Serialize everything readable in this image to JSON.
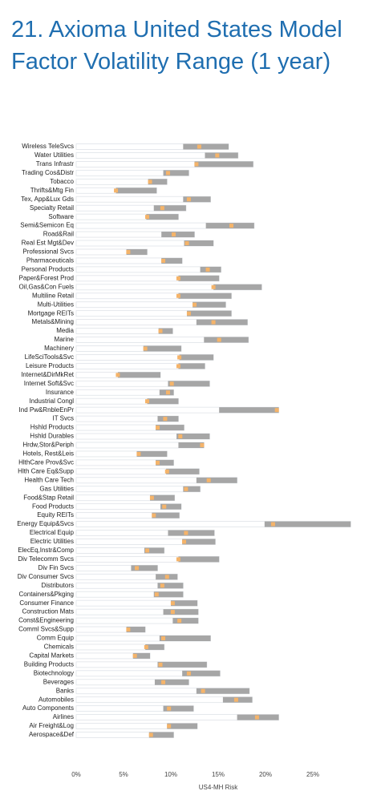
{
  "chart_data": {
    "type": "range",
    "title": "21. Axioma United States Model Factor Volatility Range (1 year)",
    "x_label": "US4-MH Risk",
    "categories": [
      "Wireless TeleSvcs",
      "Water Utilities",
      "Trans Infrastr",
      "Trading Cos&Distr",
      "Tobacco",
      "Thrifts&Mtg Fin",
      "Tex, App&Lux Gds",
      "Specialty Retail",
      "Software",
      "Semi&Semicon Eq",
      "Road&Rail",
      "Real Est Mgt&Dev",
      "Professional Svcs",
      "Pharmaceuticals",
      "Personal Products",
      "Paper&Forest Prod",
      "Oil,Gas&Con Fuels",
      "Multiline Retail",
      "Multi-Utilities",
      "Mortgage REITs",
      "Metals&Mining",
      "Media",
      "Marine",
      "Machinery",
      "LifeSciTools&Svc",
      "Leisure Products",
      "Internet&DirMkRet",
      "Internet Soft&Svc",
      "Insurance",
      "Industrial Congl",
      "Ind Pw&RnbleEnPr",
      "IT Svcs",
      "Hshld Products",
      "Hshld Durables",
      "Hrdw,Stor&Periph",
      "Hotels, Rest&Leis",
      "HlthCare Prov&Svc",
      "Hlth Care Eq&Supp",
      "Health Care Tech",
      "Gas Utilities",
      "Food&Stap Retail",
      "Food Products",
      "Equity REITs",
      "Energy Equip&Svcs",
      "Electrical Equip",
      "Electric Utilities",
      "ElecEq,Instr&Comp",
      "Div Telecomm Svcs",
      "Div Fin Svcs",
      "Div Consumer Svcs",
      "Distributors",
      "Containers&Pkging",
      "Consumer Finance",
      "Construction Mats",
      "Const&Engineering",
      "Comml Svcs&Supp",
      "Comm Equip",
      "Chemicals",
      "Capital Markets",
      "Building Products",
      "Biotechnology",
      "Beverages",
      "Banks",
      "Automobiles",
      "Auto Components",
      "Airlines",
      "Air Freight&Log",
      "Aerospace&Def"
    ],
    "low": [
      11.3,
      13.6,
      12.5,
      9.2,
      7.6,
      4.2,
      11.3,
      8.2,
      7.4,
      13.7,
      9.0,
      11.4,
      5.3,
      9.0,
      13.1,
      10.8,
      14.5,
      10.8,
      12.3,
      11.7,
      12.7,
      8.7,
      13.5,
      7.1,
      10.9,
      10.8,
      4.4,
      9.7,
      8.8,
      7.5,
      15.1,
      8.6,
      8.4,
      10.6,
      10.8,
      6.4,
      8.4,
      9.5,
      12.7,
      11.3,
      7.8,
      8.9,
      8.0,
      19.9,
      9.7,
      11.2,
      7.2,
      10.8,
      5.8,
      8.4,
      8.6,
      8.2,
      10.0,
      9.2,
      10.2,
      5.3,
      8.8,
      7.3,
      6.0,
      8.6,
      11.2,
      8.3,
      12.7,
      15.5,
      9.2,
      17.0,
      9.6,
      7.7
    ],
    "high": [
      16.1,
      17.1,
      18.7,
      11.9,
      9.6,
      8.5,
      14.2,
      11.6,
      10.8,
      18.8,
      12.5,
      14.5,
      7.5,
      11.2,
      15.3,
      15.1,
      19.6,
      16.4,
      15.8,
      16.4,
      18.1,
      10.2,
      18.2,
      11.1,
      14.5,
      13.6,
      8.9,
      14.1,
      10.3,
      10.8,
      21.4,
      10.8,
      11.4,
      14.1,
      13.5,
      9.6,
      10.3,
      13.0,
      17.0,
      13.1,
      10.4,
      11.1,
      10.9,
      29.0,
      14.6,
      14.7,
      9.3,
      15.1,
      8.6,
      10.7,
      11.3,
      11.3,
      12.8,
      12.9,
      12.9,
      7.3,
      14.2,
      9.3,
      7.8,
      13.8,
      15.2,
      11.9,
      18.3,
      18.6,
      12.4,
      21.4,
      12.8,
      10.3
    ],
    "current": [
      13.0,
      14.9,
      12.7,
      9.7,
      7.8,
      4.2,
      11.9,
      9.1,
      7.5,
      16.4,
      10.3,
      11.7,
      5.5,
      9.2,
      13.9,
      10.8,
      14.5,
      10.8,
      12.5,
      11.9,
      14.5,
      8.9,
      15.1,
      7.3,
      10.9,
      10.8,
      4.4,
      10.1,
      9.7,
      7.5,
      21.2,
      9.4,
      8.6,
      11.0,
      13.3,
      6.6,
      8.6,
      9.6,
      14.0,
      11.6,
      8.0,
      9.3,
      8.2,
      20.8,
      11.6,
      11.4,
      7.5,
      10.8,
      6.4,
      9.6,
      9.1,
      8.5,
      10.2,
      10.2,
      10.9,
      5.5,
      9.2,
      7.4,
      6.2,
      8.9,
      11.9,
      9.2,
      13.4,
      16.9,
      9.8,
      19.1,
      9.8,
      7.9
    ],
    "range_color": "#a6a6a6",
    "marker_color": "#f5b46a",
    "title_color": "#1f6eb0",
    "xlim": [
      0,
      30
    ],
    "xticks": [
      {
        "value": 0,
        "label": "0%"
      },
      {
        "value": 5,
        "label": "5%"
      },
      {
        "value": 10,
        "label": "10%"
      },
      {
        "value": 15,
        "label": "15%"
      },
      {
        "value": 20,
        "label": "20%"
      },
      {
        "value": 25,
        "label": "25%"
      }
    ]
  }
}
